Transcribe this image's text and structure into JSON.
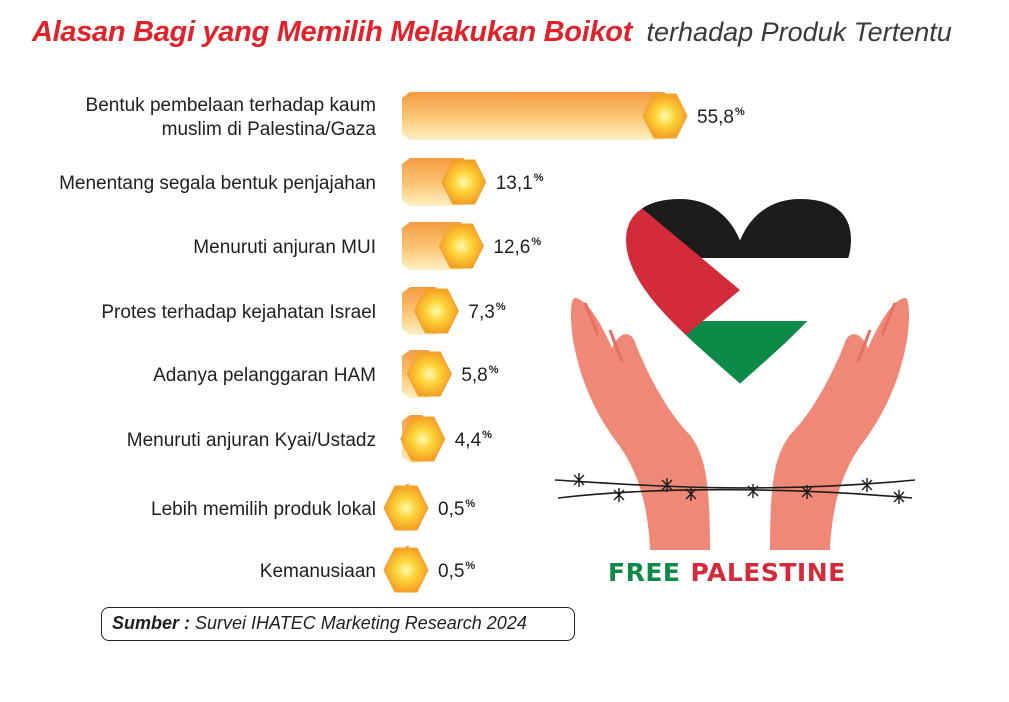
{
  "title": {
    "main": "Alasan Bagi yang Memilih Melakukan Boikot",
    "sub": "terhadap Produk Tertentu"
  },
  "chart_data": {
    "type": "bar",
    "orientation": "horizontal",
    "categories": [
      [
        "Bentuk pembelaan terhadap kaum",
        "muslim di Palestina/Gaza"
      ],
      [
        "Menentang segala bentuk penjajahan"
      ],
      [
        "Menuruti anjuran MUI"
      ],
      [
        "Protes terhadap kejahatan Israel"
      ],
      [
        "Adanya pelanggaran HAM"
      ],
      [
        "Menuruti anjuran Kyai/Ustadz"
      ],
      [
        "Lebih memilih produk lokal"
      ],
      [
        "Kemanusiaan"
      ]
    ],
    "values": [
      55.8,
      13.1,
      12.6,
      7.3,
      5.8,
      4.4,
      0.5,
      0.5
    ],
    "value_labels": [
      "55,8",
      "13,1",
      "12,6",
      "7,3",
      "5,8",
      "4,4",
      "0,5",
      "0,5"
    ],
    "unit": "%",
    "colors": {
      "bar_top": "#f7a348",
      "bar_bottom": "#fde9b0",
      "cap": "#fbc22c",
      "cap_glow": "#fff6a0"
    }
  },
  "source": {
    "label": "Sumber :",
    "text": "Survei IHATEC Marketing Research 2024"
  },
  "illustration": {
    "slogan_part1": "FREE",
    "slogan_part2": "PALESTINE",
    "colors": {
      "black": "#1c1c1c",
      "red": "#d42b3a",
      "white": "#ffffff",
      "green": "#0d8a48",
      "hands": "#f08878"
    }
  }
}
